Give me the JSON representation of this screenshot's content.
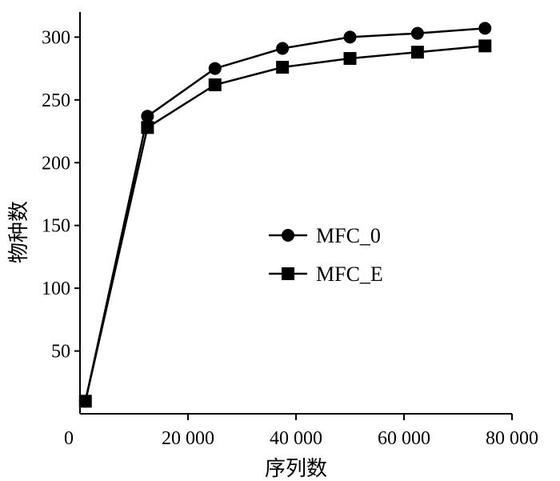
{
  "chart_data": {
    "type": "line",
    "title": "",
    "xlabel": "序列数",
    "ylabel": "物种数",
    "xlim": [
      0,
      80000
    ],
    "ylim": [
      0,
      320
    ],
    "x_ticks": [
      {
        "value": 0,
        "label": "0"
      },
      {
        "value": 20000,
        "label": "20 000"
      },
      {
        "value": 40000,
        "label": "40 000"
      },
      {
        "value": 60000,
        "label": "60 000"
      },
      {
        "value": 80000,
        "label": "80 000"
      }
    ],
    "y_ticks": [
      {
        "value": 50,
        "label": "50"
      },
      {
        "value": 100,
        "label": "100"
      },
      {
        "value": 150,
        "label": "150"
      },
      {
        "value": 200,
        "label": "200"
      },
      {
        "value": 250,
        "label": "250"
      },
      {
        "value": 300,
        "label": "300"
      }
    ],
    "grid": false,
    "legend": "center-right",
    "series": [
      {
        "name": "MFC_0",
        "marker": "circle",
        "x": [
          1000,
          12500,
          25000,
          37500,
          50000,
          62500,
          75000
        ],
        "y": [
          10,
          237,
          275,
          291,
          300,
          303,
          307
        ]
      },
      {
        "name": "MFC_E",
        "marker": "square",
        "x": [
          1000,
          12500,
          25000,
          37500,
          50000,
          62500,
          75000
        ],
        "y": [
          10,
          228,
          262,
          276,
          283,
          288,
          293
        ]
      }
    ]
  }
}
